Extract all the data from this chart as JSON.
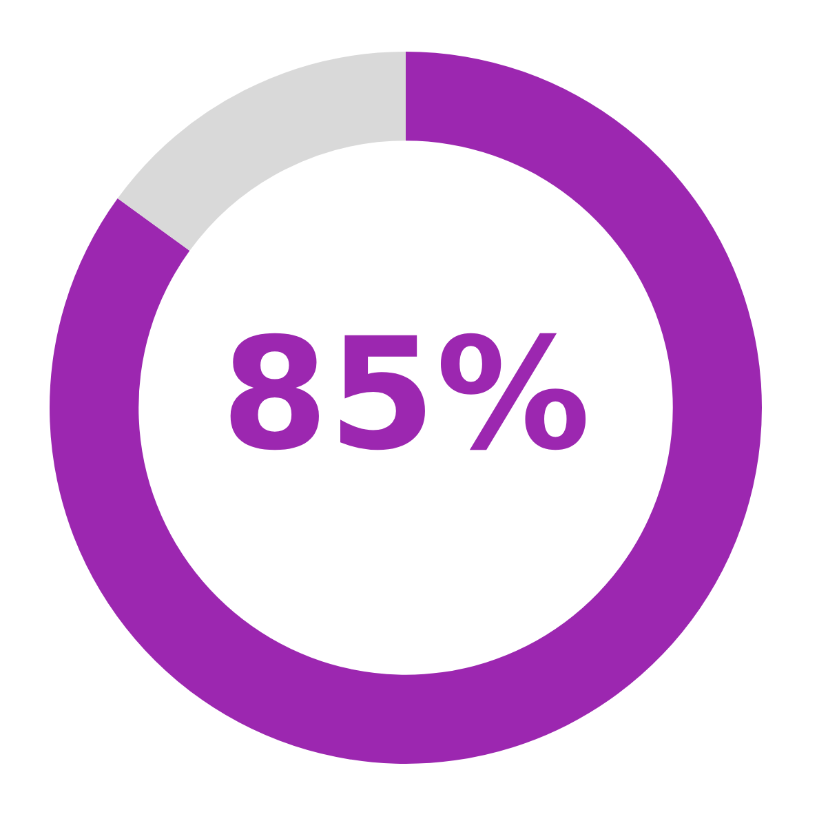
{
  "chart_data": {
    "type": "donut",
    "categories": [
      null,
      null
    ],
    "values": [
      85,
      15
    ],
    "colors": [
      "#9c27b0",
      "#d9d9d9"
    ],
    "value_labels": [
      "85%",
      null
    ]
  }
}
